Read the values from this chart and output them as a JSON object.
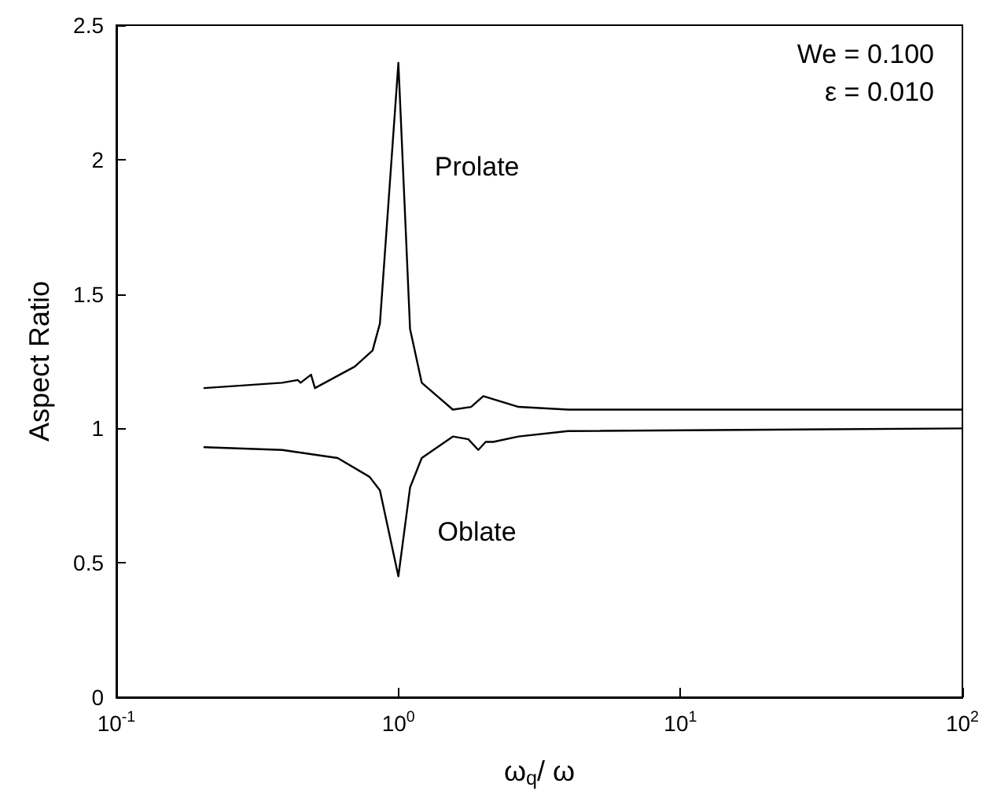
{
  "chart_data": {
    "type": "line",
    "xlabel": "ω$_{q}$/ ω",
    "ylabel": "Aspect Ratio",
    "log": "x",
    "xlim": [
      0.1,
      100
    ],
    "xticks": [
      {
        "value": 0.1,
        "label": "10$^{-1}$"
      },
      {
        "value": 1,
        "label": "10$^{0}$"
      },
      {
        "value": 10,
        "label": "10$^{1}$"
      },
      {
        "value": 100,
        "label": "10$^{2}$"
      }
    ],
    "ylim": [
      0,
      2.5
    ],
    "yticks": [
      0,
      0.5,
      1,
      1.5,
      2,
      2.5
    ],
    "grid": false,
    "marker": "none",
    "line_style": "solid",
    "series": [
      {
        "name": "Prolate",
        "color": "#000000",
        "x": [
          0.205,
          0.387,
          0.44,
          0.45,
          0.49,
          0.506,
          0.7,
          0.81,
          0.86,
          1.0,
          1.1,
          1.21,
          1.56,
          1.81,
          2.0,
          2.67,
          4.0,
          100
        ],
        "values": [
          1.15,
          1.17,
          1.18,
          1.17,
          1.2,
          1.15,
          1.23,
          1.29,
          1.39,
          2.36,
          1.37,
          1.17,
          1.07,
          1.08,
          1.12,
          1.08,
          1.07,
          1.07
        ]
      },
      {
        "name": "Oblate",
        "color": "#000000",
        "x": [
          0.205,
          0.387,
          0.609,
          0.79,
          0.86,
          1.0,
          1.1,
          1.21,
          1.56,
          1.77,
          1.92,
          2.04,
          2.17,
          2.67,
          4.0,
          100
        ],
        "values": [
          0.93,
          0.92,
          0.89,
          0.82,
          0.77,
          0.45,
          0.78,
          0.89,
          0.97,
          0.96,
          0.92,
          0.95,
          0.95,
          0.97,
          0.99,
          1.0
        ]
      }
    ],
    "annotations": [
      "We = 0.100",
      "ε = 0.010"
    ]
  }
}
